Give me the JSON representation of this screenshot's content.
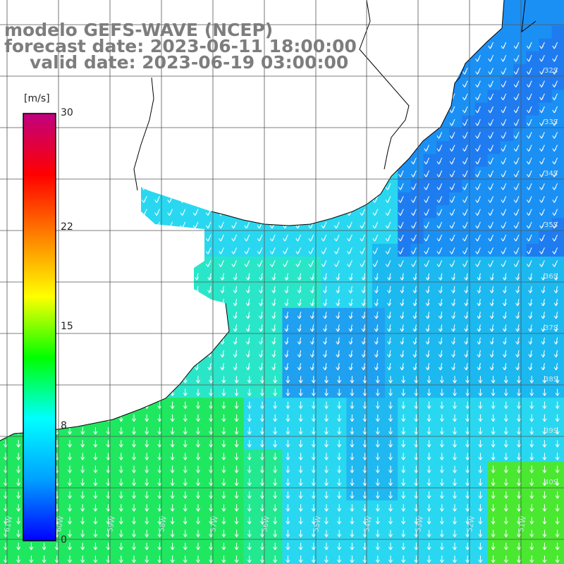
{
  "header": {
    "model": "modelo GEFS-WAVE (NCEP)",
    "forecast": "forecast date: 2023-06-11 18:00:00",
    "valid": "valid date: 2023-06-19 03:00:00"
  },
  "colorbar": {
    "unit": "[m/s]",
    "ticks": [
      {
        "label": "30",
        "value": 30
      },
      {
        "label": "22",
        "value": 22
      },
      {
        "label": "15",
        "value": 15
      },
      {
        "label": "8",
        "value": 8
      },
      {
        "label": "0",
        "value": 0
      }
    ],
    "range": [
      0,
      30
    ],
    "colors": [
      "#0000ff",
      "#00a0ff",
      "#00ffff",
      "#00ff00",
      "#ffff00",
      "#ff8000",
      "#ff0000",
      "#c00080"
    ]
  },
  "map": {
    "lon_range": [
      -61,
      -50
    ],
    "lat_range": [
      -41,
      -31
    ],
    "lon_labels": [
      "61W",
      "60W",
      "59W",
      "58W",
      "57W",
      "56W",
      "55W",
      "54W",
      "53W",
      "52W",
      "51W"
    ],
    "lat_labels": [
      "32S",
      "33S",
      "34S",
      "35S",
      "36S",
      "37S",
      "38S",
      "39S",
      "40S"
    ],
    "ocean_color": "#33e0f0",
    "land_color": "#ffffff",
    "vector_color": "#ffffff",
    "wind_direction_deg": 200
  }
}
